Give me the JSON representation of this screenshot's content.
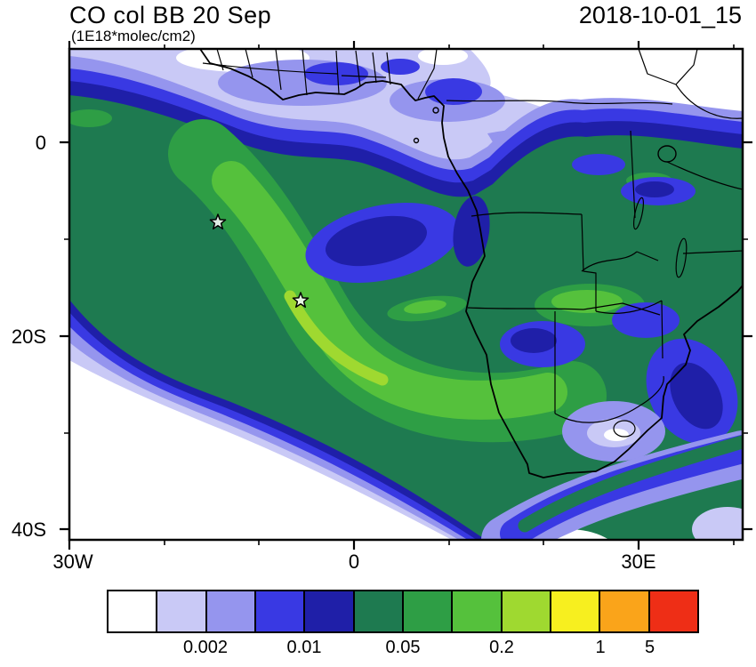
{
  "header": {
    "title": "CO col BB 20 Sep",
    "units": "(1E18*molec/cm2)",
    "datetime": "2018-10-01_15"
  },
  "axes": {
    "y_ticks": [
      "0",
      "20S",
      "40S"
    ],
    "x_ticks": [
      "30W",
      "0",
      "30E"
    ]
  },
  "colorbar": {
    "colors": [
      "#FFFFFF",
      "#C9C9F6",
      "#9595EE",
      "#3939E3",
      "#1F1FA8",
      "#1E7A50",
      "#2E9E45",
      "#55C13C",
      "#9FD930",
      "#F7EF1F",
      "#FAA41A",
      "#EE2E16"
    ],
    "labels": [
      {
        "text": "0.002",
        "boundary": 2
      },
      {
        "text": "0.01",
        "boundary": 4
      },
      {
        "text": "0.05",
        "boundary": 6
      },
      {
        "text": "0.2",
        "boundary": 8
      },
      {
        "text": "1",
        "boundary": 10
      },
      {
        "text": "5",
        "boundary": 11
      }
    ]
  },
  "chart_data": {
    "type": "heatmap",
    "title": "CO col BB 20 Sep",
    "units": "1E18*molec/cm2",
    "timestamp": "2018-10-01_15",
    "region": "Africa and South Atlantic (coastline and country borders overlay)",
    "extent": {
      "lon_min": -30,
      "lon_max": 41,
      "lat_min": -41,
      "lat_max": 10
    },
    "x_tick_labels": [
      "30W",
      "0",
      "30E"
    ],
    "y_tick_labels": [
      "0",
      "20S",
      "40S"
    ],
    "colorbar_labeled_levels": [
      0.002,
      0.01,
      0.05,
      0.2,
      1,
      5
    ],
    "palette": [
      "#FFFFFF",
      "#C9C9F6",
      "#9595EE",
      "#3939E3",
      "#1F1FA8",
      "#1E7A50",
      "#2E9E45",
      "#55C13C",
      "#9FD930",
      "#F7EF1F",
      "#FAA41A",
      "#EE2E16"
    ],
    "legend_position": "bottom",
    "grid": false,
    "markers": [
      {
        "symbol": "star",
        "lon": -14.4,
        "lat": -7.9
      },
      {
        "symbol": "star",
        "lon": -5.7,
        "lat": -15.9
      }
    ],
    "description_of_field": "Filled contours of CO column: broad plume maximum (green, 0.05-0.5) arcing over the South Atlantic between the equator and 30S, extending over southern Africa; low values (white/lavender, <0.002) over the Sahara, southwest ocean corner and far south"
  }
}
